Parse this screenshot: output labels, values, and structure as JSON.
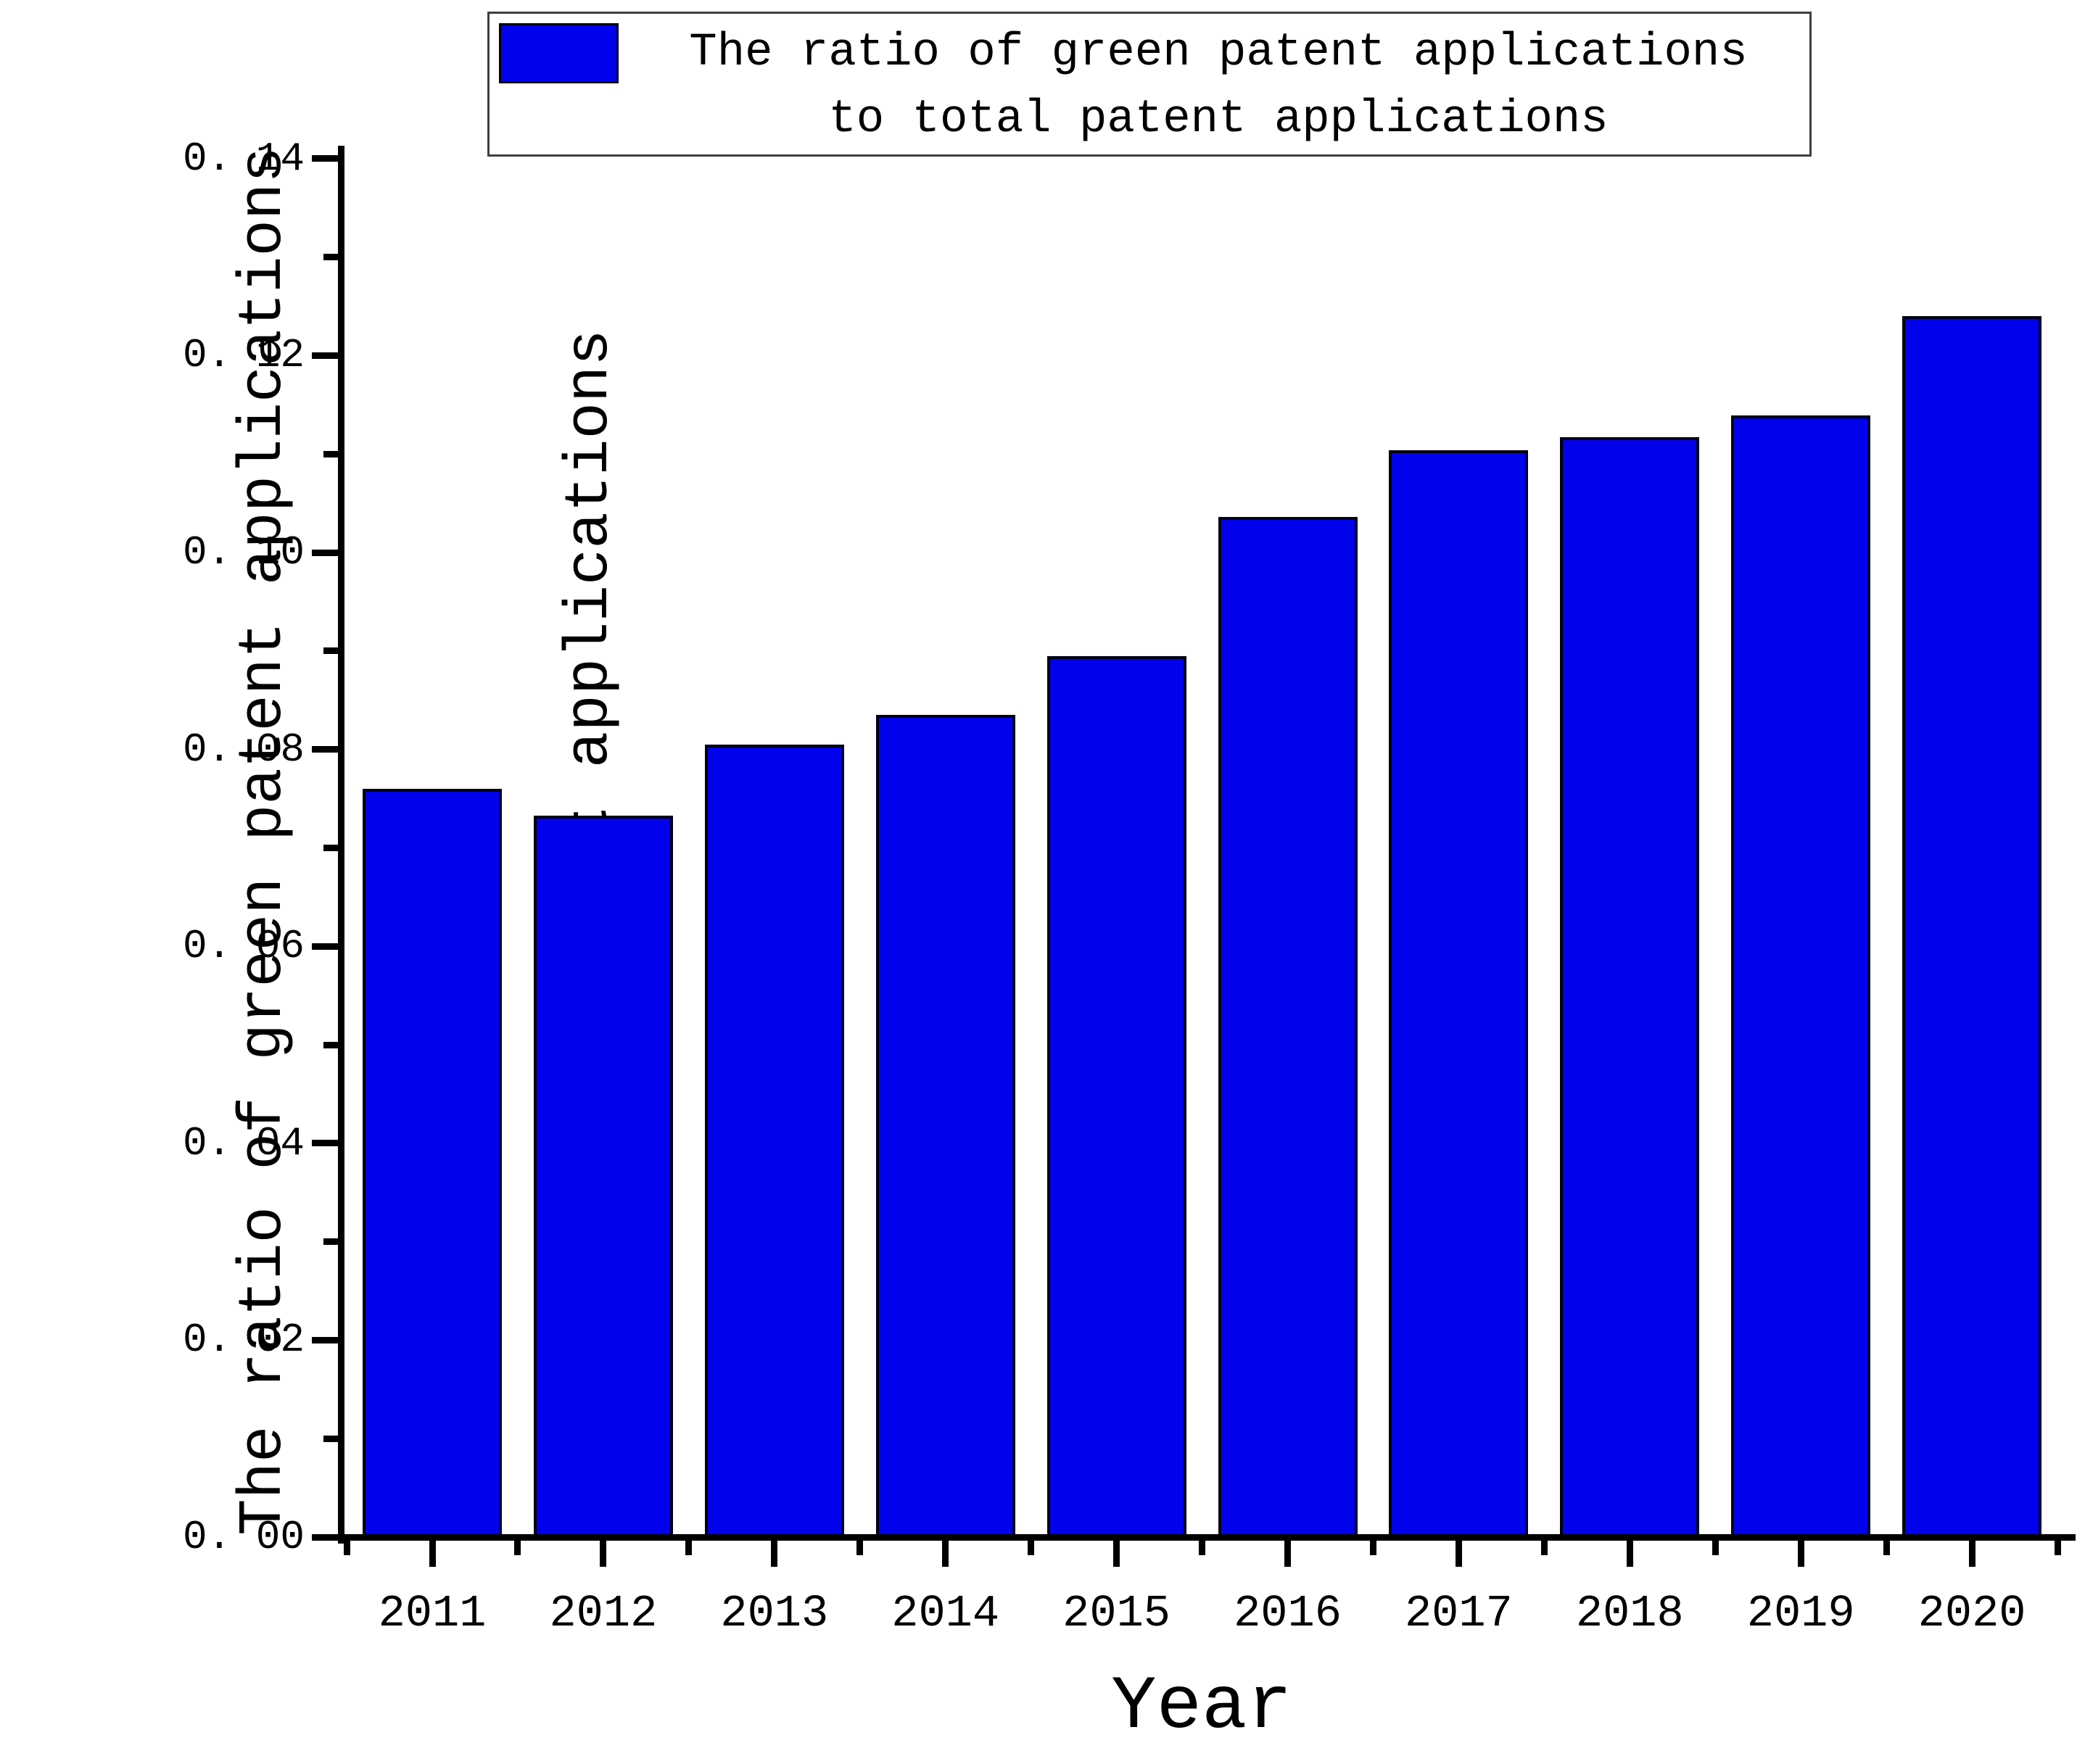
{
  "chart_data": {
    "type": "bar",
    "title": "",
    "categories": [
      "2011",
      "2012",
      "2013",
      "2014",
      "2015",
      "2016",
      "2017",
      "2018",
      "2019",
      "2020"
    ],
    "values": [
      0.076,
      0.0733,
      0.0805,
      0.0835,
      0.0895,
      0.1036,
      0.1104,
      0.1117,
      0.1139,
      0.124
    ],
    "series_name": "The ratio of green patent applications to total patent applications",
    "legend_lines": [
      "The ratio of green patent applications",
      "to total patent applications"
    ],
    "xlabel": "Year",
    "ylabel_lines": [
      "The ratio of green patent applications",
      "to total patent applications"
    ],
    "ylim": [
      0.0,
      0.14
    ],
    "yticks": [
      0.0,
      0.02,
      0.04,
      0.06,
      0.08,
      0.1,
      0.12,
      0.14
    ],
    "ytick_labels": [
      "0. 00",
      "0. 02",
      "0. 04",
      "0. 06",
      "0. 08",
      "0. 10",
      "0. 12",
      "0. 14"
    ],
    "minor_tick_step": 0.01,
    "grid": false,
    "legend_position": "top",
    "colors": {
      "bar_fill": "#0101ec",
      "bar_border": "#000014",
      "axis": "#000000",
      "legend_border": "#3f3f3f",
      "background": "#ffffff"
    }
  }
}
